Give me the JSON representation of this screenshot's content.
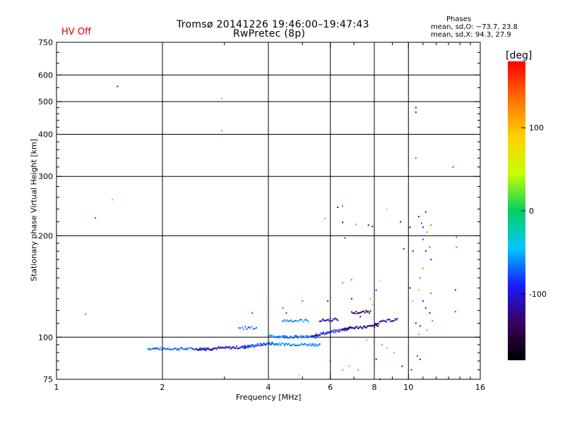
{
  "header": {
    "title_line1": "Tromsø 20141226 19:46:00–19:47:43",
    "title_line2": "RwPretec (8p)",
    "status": "HV Off"
  },
  "phases": {
    "title": "Phases",
    "o_line": "mean, sd,O: −73.7, 23.8",
    "x_line": "mean, sd,X:  94.3, 27.9"
  },
  "colors": {
    "grid": "#000000",
    "status": "#d40000",
    "colorbar": [
      "#000000",
      "#3a0060",
      "#1a1aff",
      "#00c8ff",
      "#00d060",
      "#c8ff00",
      "#ffd000",
      "#ff7000",
      "#ff0000"
    ]
  },
  "chart_data": {
    "type": "scatter",
    "title": "Tromsø 20141226 19:46:00–19:47:43",
    "subtitle": "RwPretec (8p)",
    "xlabel": "Frequency [MHz]",
    "ylabel": "Stationary phase Virtual Height [km]",
    "xscale": "log",
    "yscale": "log",
    "xlim": [
      1,
      16
    ],
    "ylim": [
      75,
      750
    ],
    "xticks": [
      1,
      2,
      4,
      6,
      8,
      10,
      16
    ],
    "yticks": [
      75,
      100,
      200,
      300,
      400,
      500,
      600,
      750
    ],
    "x_gridlines": [
      2,
      4,
      6,
      8,
      10
    ],
    "y_gridlines": [
      100,
      200,
      300,
      400,
      500,
      600
    ],
    "colorbar": {
      "label": "[deg]",
      "range": [
        -180,
        180
      ],
      "ticks": [
        100,
        0,
        -100
      ]
    },
    "points": [
      [
        1.49,
        555,
        -130
      ],
      [
        1.29,
        226,
        -70
      ],
      [
        1.44,
        256,
        110
      ],
      [
        1.21,
        117,
        -60
      ],
      [
        2.95,
        510,
        110
      ],
      [
        2.95,
        410,
        110
      ],
      [
        10.5,
        480,
        -110
      ],
      [
        10.5,
        465,
        -100
      ],
      [
        10.5,
        340,
        -60
      ],
      [
        13.4,
        320,
        170
      ],
      [
        6.5,
        245,
        150
      ],
      [
        6.3,
        243,
        -120
      ],
      [
        5.8,
        225,
        120
      ],
      [
        6.5,
        219,
        -140
      ],
      [
        6.6,
        197,
        -80
      ],
      [
        7.1,
        216,
        130
      ],
      [
        7.7,
        215,
        -130
      ],
      [
        7.9,
        213,
        -120
      ],
      [
        8.7,
        240,
        60
      ],
      [
        9.5,
        220,
        -110
      ],
      [
        10.1,
        212,
        -150
      ],
      [
        10.7,
        228,
        -110
      ],
      [
        11.2,
        235,
        -100
      ],
      [
        11.0,
        212,
        -100
      ],
      [
        11.3,
        205,
        130
      ],
      [
        10.9,
        218,
        170
      ],
      [
        11.6,
        215,
        140
      ],
      [
        11.0,
        195,
        -80
      ],
      [
        11.2,
        180,
        -120
      ],
      [
        11.5,
        185,
        160
      ],
      [
        10.3,
        180,
        -100
      ],
      [
        9.7,
        183,
        -110
      ],
      [
        13.7,
        198,
        -60
      ],
      [
        13.7,
        185,
        -60
      ],
      [
        11.0,
        160,
        130
      ],
      [
        11.6,
        170,
        -90
      ],
      [
        10.8,
        150,
        150
      ],
      [
        6.5,
        145,
        140
      ],
      [
        6.9,
        148,
        140
      ],
      [
        8.3,
        147,
        80
      ],
      [
        8.1,
        138,
        -80
      ],
      [
        7.8,
        130,
        120
      ],
      [
        7.9,
        125,
        100
      ],
      [
        7.6,
        120,
        150
      ],
      [
        7.3,
        115,
        -120
      ],
      [
        6.9,
        130,
        -110
      ],
      [
        6.0,
        140,
        110
      ],
      [
        5.9,
        128,
        -90
      ],
      [
        5.0,
        128,
        -60
      ],
      [
        4.0,
        127,
        140
      ],
      [
        4.0,
        118,
        130
      ],
      [
        4.4,
        122,
        -60
      ],
      [
        4.5,
        118,
        -80
      ],
      [
        3.6,
        118,
        170
      ],
      [
        10.1,
        140,
        -150
      ],
      [
        10.3,
        128,
        110
      ],
      [
        10.7,
        138,
        110
      ],
      [
        11.0,
        128,
        -110
      ],
      [
        11.2,
        122,
        -100
      ],
      [
        11.5,
        118,
        -100
      ],
      [
        11.6,
        135,
        150
      ],
      [
        11.7,
        112,
        150
      ],
      [
        13.6,
        138,
        -100
      ],
      [
        13.6,
        119,
        170
      ],
      [
        10.5,
        110,
        -110
      ],
      [
        10.8,
        108,
        -100
      ],
      [
        11.3,
        105,
        130
      ],
      [
        10.7,
        102,
        120
      ],
      [
        7.6,
        98,
        120
      ],
      [
        8.4,
        95,
        130
      ],
      [
        8.7,
        93,
        110
      ],
      [
        9.1,
        90,
        120
      ],
      [
        10.6,
        88,
        -80
      ],
      [
        6.0,
        85,
        -80
      ],
      [
        6.8,
        82,
        120
      ],
      [
        7.2,
        80,
        110
      ],
      [
        8.1,
        86,
        -120
      ],
      [
        9.6,
        82,
        -110
      ],
      [
        10.2,
        80,
        -90
      ],
      [
        4.9,
        77,
        100
      ],
      [
        6.5,
        80,
        120
      ],
      [
        8.3,
        75,
        -110
      ],
      [
        10.8,
        86,
        -100
      ]
    ],
    "traces": [
      {
        "from": [
          1.82,
          92.5
        ],
        "to": [
          2.8,
          92.2
        ],
        "phase": -70,
        "n": 60
      },
      {
        "from": [
          2.5,
          92.2
        ],
        "to": [
          3.5,
          93.5
        ],
        "phase": -110,
        "n": 55
      },
      {
        "from": [
          3.4,
          93.5
        ],
        "to": [
          4.1,
          96.0
        ],
        "phase": -80,
        "n": 40
      },
      {
        "from": [
          4.0,
          95.5
        ],
        "to": [
          5.6,
          95.0
        ],
        "phase": -60,
        "n": 55
      },
      {
        "from": [
          4.0,
          100.5
        ],
        "to": [
          5.5,
          100.0
        ],
        "phase": -65,
        "n": 55
      },
      {
        "from": [
          5.3,
          101.0
        ],
        "to": [
          6.8,
          106.0
        ],
        "phase": -100,
        "n": 45
      },
      {
        "from": [
          6.5,
          106.0
        ],
        "to": [
          8.2,
          108.0
        ],
        "phase": -130,
        "n": 40
      },
      {
        "from": [
          3.3,
          106.5
        ],
        "to": [
          3.7,
          106.5
        ],
        "phase": -70,
        "n": 12
      },
      {
        "from": [
          4.4,
          112.0
        ],
        "to": [
          5.2,
          112.0
        ],
        "phase": -60,
        "n": 20
      },
      {
        "from": [
          5.6,
          112.0
        ],
        "to": [
          6.3,
          113.0
        ],
        "phase": -110,
        "n": 18
      },
      {
        "from": [
          6.9,
          118.0
        ],
        "to": [
          7.8,
          119.0
        ],
        "phase": -140,
        "n": 18
      },
      {
        "from": [
          8.0,
          110.0
        ],
        "to": [
          9.3,
          113.0
        ],
        "phase": -120,
        "n": 22
      }
    ]
  }
}
